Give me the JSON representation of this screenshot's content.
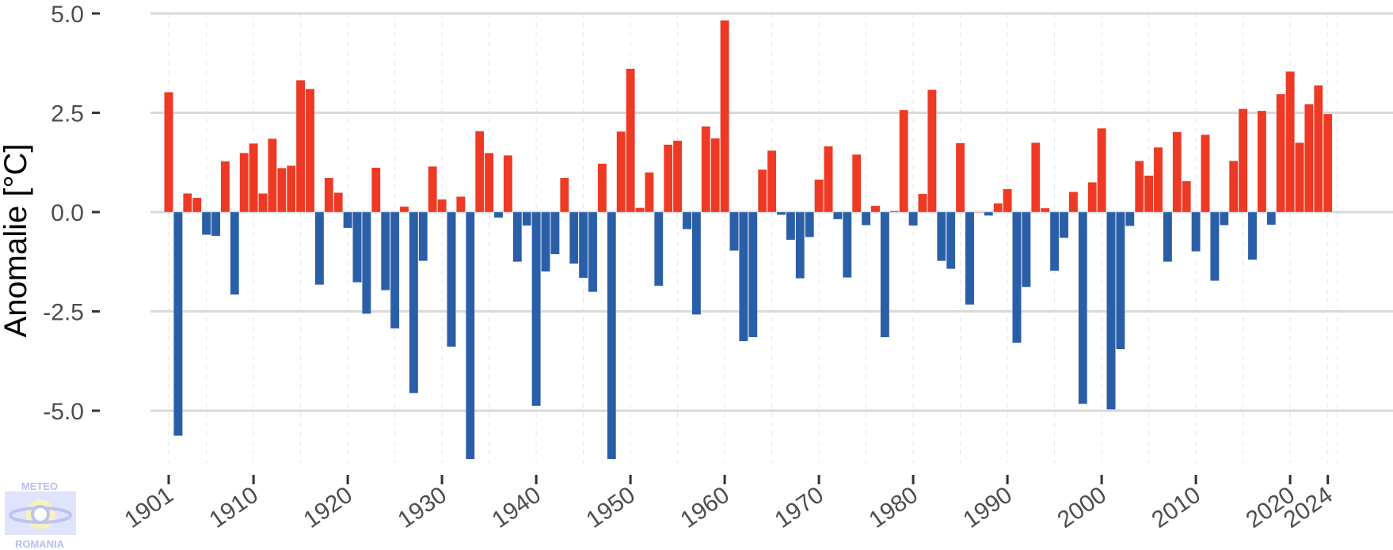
{
  "chart_data": {
    "type": "bar",
    "title": "",
    "xlabel": "",
    "ylabel": "Anomalie [°C]",
    "ylim": [
      -6.6,
      5.2
    ],
    "xlim": [
      1899.5,
      2025.5
    ],
    "grid": "horizontal major lines, dashed vertical minor lines",
    "legend": "none",
    "yticks": [
      5.0,
      2.5,
      0.0,
      -2.5,
      -5.0
    ],
    "ytick_labels": [
      "5.0",
      "2.5",
      "0.0",
      "-2.5",
      "-5.0"
    ],
    "xticks": [
      1901,
      1910,
      1920,
      1930,
      1940,
      1950,
      1960,
      1970,
      1980,
      1990,
      2000,
      2010,
      2020,
      2024
    ],
    "xtick_labels": [
      "1901",
      "1910",
      "1920",
      "1930",
      "1940",
      "1950",
      "1960",
      "1970",
      "1980",
      "1990",
      "2000",
      "2010",
      "2020",
      "2024"
    ],
    "colors": {
      "positive": "#ee3a24",
      "negative": "#2a5fa8",
      "grid": "#d9d9d9",
      "text": "#4d4d4d"
    },
    "x": [
      1901,
      1902,
      1903,
      1904,
      1905,
      1906,
      1907,
      1908,
      1909,
      1910,
      1911,
      1912,
      1913,
      1914,
      1915,
      1916,
      1917,
      1918,
      1919,
      1920,
      1921,
      1922,
      1923,
      1924,
      1925,
      1926,
      1927,
      1928,
      1929,
      1930,
      1931,
      1932,
      1933,
      1934,
      1935,
      1936,
      1937,
      1938,
      1939,
      1940,
      1941,
      1942,
      1943,
      1944,
      1945,
      1946,
      1947,
      1948,
      1949,
      1950,
      1951,
      1952,
      1953,
      1954,
      1955,
      1956,
      1957,
      1958,
      1959,
      1960,
      1961,
      1962,
      1963,
      1964,
      1965,
      1966,
      1967,
      1968,
      1969,
      1970,
      1971,
      1972,
      1973,
      1974,
      1975,
      1976,
      1977,
      1978,
      1979,
      1980,
      1981,
      1982,
      1983,
      1984,
      1985,
      1986,
      1987,
      1988,
      1989,
      1990,
      1991,
      1992,
      1993,
      1994,
      1995,
      1996,
      1997,
      1998,
      1999,
      2000,
      2001,
      2002,
      2003,
      2004,
      2005,
      2006,
      2007,
      2008,
      2009,
      2010,
      2011,
      2012,
      2013,
      2014,
      2015,
      2016,
      2017,
      2018,
      2019,
      2020,
      2021,
      2022,
      2023,
      2024
    ],
    "values": [
      3.02,
      -5.63,
      0.47,
      0.36,
      -0.57,
      -0.6,
      1.28,
      -2.08,
      1.49,
      1.73,
      0.47,
      1.85,
      1.11,
      1.17,
      3.32,
      3.1,
      -1.83,
      0.86,
      0.49,
      -0.4,
      -1.77,
      -2.56,
      1.12,
      -1.97,
      -2.93,
      0.14,
      -4.56,
      -1.23,
      1.15,
      0.32,
      -3.39,
      0.39,
      -6.22,
      2.04,
      1.49,
      -0.14,
      1.43,
      -1.25,
      -0.34,
      -4.88,
      -1.5,
      -1.06,
      0.86,
      -1.3,
      -1.66,
      -2.01,
      1.22,
      -6.22,
      2.03,
      3.61,
      0.11,
      1.0,
      -1.86,
      1.7,
      1.8,
      -0.43,
      -2.58,
      2.16,
      1.86,
      4.83,
      -0.97,
      -3.25,
      -3.15,
      1.07,
      1.55,
      -0.07,
      -0.7,
      -1.67,
      -0.63,
      0.82,
      1.66,
      -0.18,
      -1.65,
      1.45,
      -0.33,
      0.16,
      -3.15,
      0.03,
      2.57,
      -0.34,
      0.46,
      3.08,
      -1.23,
      -1.43,
      1.74,
      -2.33,
      0.0,
      -0.09,
      0.22,
      0.58,
      -3.29,
      -1.89,
      1.75,
      0.1,
      -1.48,
      -0.65,
      0.51,
      -4.83,
      0.75,
      2.11,
      -4.97,
      -3.45,
      -0.35,
      1.29,
      0.92,
      1.63,
      -1.25,
      2.02,
      0.78,
      -0.99,
      1.95,
      -1.73,
      -0.33,
      1.29,
      2.6,
      -1.2,
      2.55,
      -0.32,
      2.97,
      3.54,
      1.75,
      2.72,
      3.19,
      2.47
    ]
  },
  "logo": {
    "text_top": "METEO",
    "text_bottom": "ROMANIA"
  }
}
